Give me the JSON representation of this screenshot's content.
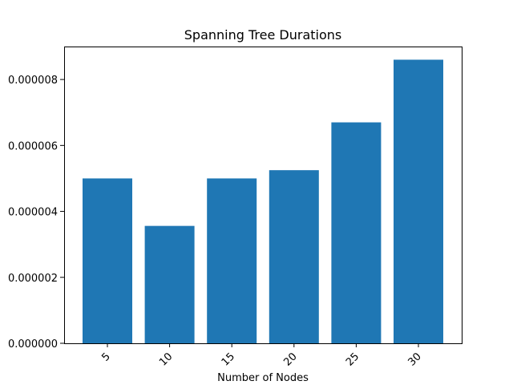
{
  "chart_data": {
    "type": "bar",
    "title": "Spanning Tree Durations",
    "xlabel": "Number of Nodes",
    "ylabel": "",
    "categories": [
      "5",
      "10",
      "15",
      "20",
      "25",
      "30"
    ],
    "values": [
      5e-06,
      3.56e-06,
      5e-06,
      5.25e-06,
      6.7e-06,
      8.6e-06
    ],
    "ylim": [
      0,
      9e-06
    ],
    "yticks": [
      0,
      2e-06,
      4e-06,
      6e-06,
      8e-06
    ],
    "ytick_labels": [
      "0.000000",
      "0.000002",
      "0.000004",
      "0.000006",
      "0.000008"
    ],
    "bar_color": "#1f77b4",
    "grid": false,
    "xtick_rotation": "45deg"
  }
}
